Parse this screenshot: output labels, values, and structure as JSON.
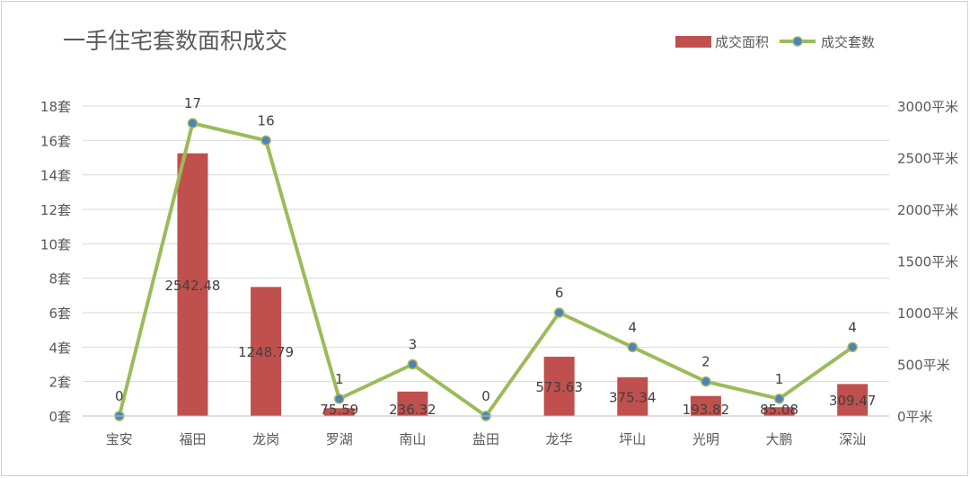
{
  "chart_data": {
    "type": "bar",
    "title": "一手住宅套数面积成交",
    "categories": [
      "宝安",
      "福田",
      "龙岗",
      "罗湖",
      "南山",
      "盐田",
      "龙华",
      "坪山",
      "光明",
      "大鹏",
      "深汕"
    ],
    "series": [
      {
        "name": "成交面积",
        "type": "bar",
        "axis": "right",
        "color": "#c0504d",
        "values": [
          0,
          2542.48,
          1248.79,
          75.59,
          236.32,
          0,
          573.63,
          375.34,
          193.82,
          85.08,
          309.47
        ],
        "labels": [
          "",
          "2542.48",
          "1248.79",
          "75.59",
          "236.32",
          "",
          "573.63",
          "375.34",
          "193.82",
          "85.08",
          "309.47"
        ]
      },
      {
        "name": "成交套数",
        "type": "line",
        "axis": "left",
        "color": "#9bbb59",
        "marker_color": "#4f81bd",
        "values": [
          0,
          17,
          16,
          1,
          3,
          0,
          6,
          4,
          2,
          1,
          4
        ],
        "labels": [
          "0",
          "17",
          "16",
          "1",
          "3",
          "0",
          "6",
          "4",
          "2",
          "1",
          "4"
        ]
      }
    ],
    "y_left": {
      "range": [
        0,
        18
      ],
      "ticks": [
        0,
        2,
        4,
        6,
        8,
        10,
        12,
        14,
        16,
        18
      ],
      "tick_labels": [
        "0套",
        "2套",
        "4套",
        "6套",
        "8套",
        "10套",
        "12套",
        "14套",
        "16套",
        "18套"
      ]
    },
    "y_right": {
      "range": [
        0,
        3000
      ],
      "ticks": [
        0,
        500,
        1000,
        1500,
        2000,
        2500,
        3000
      ],
      "tick_labels": [
        "0平米",
        "500平米",
        "1000平米",
        "1500平米",
        "2000平米",
        "2500平米",
        "3000平米"
      ]
    },
    "grid": true,
    "legend_position": "top-right"
  }
}
